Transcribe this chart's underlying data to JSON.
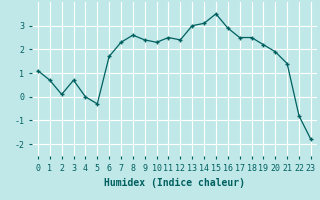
{
  "x": [
    0,
    1,
    2,
    3,
    4,
    5,
    6,
    7,
    8,
    9,
    10,
    11,
    12,
    13,
    14,
    15,
    16,
    17,
    18,
    19,
    20,
    21,
    22,
    23
  ],
  "y": [
    1.1,
    0.7,
    0.1,
    0.7,
    0.0,
    -0.3,
    1.7,
    2.3,
    2.6,
    2.4,
    2.3,
    2.5,
    2.4,
    3.0,
    3.1,
    3.5,
    2.9,
    2.5,
    2.5,
    2.2,
    1.9,
    1.4,
    -0.8,
    -1.8
  ],
  "line_color": "#006060",
  "marker": "+",
  "xlabel": "Humidex (Indice chaleur)",
  "xlim": [
    -0.5,
    23.5
  ],
  "ylim": [
    -2.5,
    4.0
  ],
  "yticks": [
    -2,
    -1,
    0,
    1,
    2,
    3
  ],
  "xticks": [
    0,
    1,
    2,
    3,
    4,
    5,
    6,
    7,
    8,
    9,
    10,
    11,
    12,
    13,
    14,
    15,
    16,
    17,
    18,
    19,
    20,
    21,
    22,
    23
  ],
  "bg_color": "#c0e8e8",
  "grid_color": "#ffffff",
  "tick_color": "#006060",
  "label_fontsize": 7,
  "tick_fontsize": 6
}
